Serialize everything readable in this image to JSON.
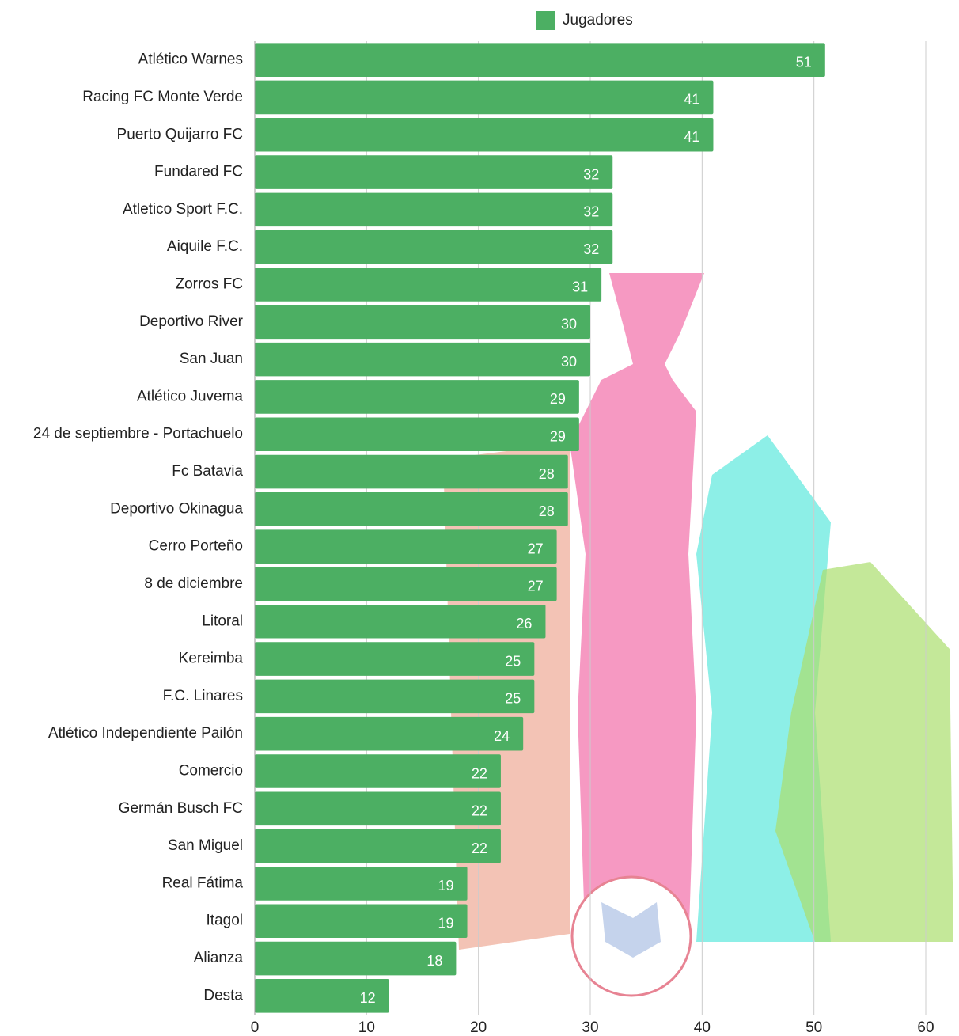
{
  "chart_data": {
    "type": "bar",
    "orientation": "horizontal",
    "categories": [
      "Atlético Warnes",
      "Racing FC Monte Verde",
      "Puerto Quijarro FC",
      "Fundared FC",
      "Atletico Sport F.C.",
      "Aiquile F.C.",
      "Zorros FC",
      "Deportivo River",
      "San Juan",
      "Atlético Juvema",
      "24 de septiembre - Portachuelo",
      "Fc Batavia",
      "Deportivo Okinagua",
      "Cerro Porteño",
      "8 de diciembre",
      "Litoral",
      "Kereimba",
      "F.C. Linares",
      "Atlético Independiente Pailón",
      "Comercio",
      "Germán Busch FC",
      "San Miguel",
      "Real Fátima",
      "Itagol",
      "Alianza",
      "Desta"
    ],
    "series": [
      {
        "name": "Jugadores",
        "color": "#4caf63",
        "values": [
          51,
          41,
          41,
          32,
          32,
          32,
          31,
          30,
          30,
          29,
          29,
          28,
          28,
          27,
          27,
          26,
          25,
          25,
          24,
          22,
          22,
          22,
          19,
          19,
          18,
          12
        ]
      }
    ],
    "xlim": [
      0,
      60
    ],
    "xticks": [
      0,
      10,
      20,
      30,
      40,
      50,
      60
    ],
    "grid": true,
    "legend": "top"
  }
}
